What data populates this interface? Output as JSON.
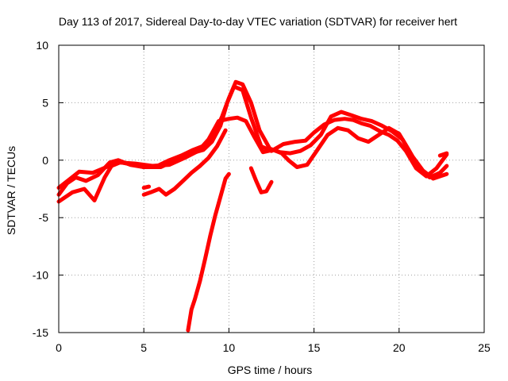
{
  "chart_data": {
    "type": "line",
    "title": "Day 113 of 2017, Sidereal Day-to-day VTEC variation (SDTVAR) for receiver hert",
    "xlabel": "GPS time / hours",
    "ylabel": "SDTVAR / TECUs",
    "xlim": [
      0,
      25
    ],
    "ylim": [
      -15,
      10
    ],
    "xticks": [
      0,
      5,
      10,
      15,
      20,
      25
    ],
    "yticks": [
      -15,
      -10,
      -5,
      0,
      5,
      10
    ],
    "xtick_labels": [
      "0",
      "5",
      "10",
      "15",
      "20",
      "25"
    ],
    "ytick_labels": [
      "-15",
      "-10",
      "-5",
      "0",
      "5",
      "10"
    ],
    "grid": true,
    "legend": "none",
    "series_color": "#ff0000",
    "series": [
      {
        "name": "track-1",
        "x": [
          0,
          0.6,
          1.2,
          2.0,
          2.8,
          3.3,
          4.0,
          5.0,
          6.0,
          7.0,
          7.8,
          8.5,
          9.0,
          9.5,
          9.9,
          10.3,
          10.8,
          11.3,
          11.9,
          12.5,
          13.2,
          13.9,
          14.5,
          15.0,
          15.6,
          16.2,
          16.8,
          17.3,
          17.8,
          18.3,
          18.9,
          19.4,
          19.9,
          20.4,
          21.0,
          21.6,
          22.2,
          22.8
        ],
        "y": [
          -2.4,
          -1.7,
          -1.0,
          -1.1,
          -0.6,
          -0.1,
          -0.3,
          -0.6,
          -0.6,
          0.1,
          0.6,
          0.9,
          1.6,
          3.0,
          5.0,
          6.4,
          6.1,
          3.7,
          1.2,
          0.8,
          1.4,
          1.6,
          1.7,
          2.4,
          3.1,
          3.5,
          3.6,
          3.5,
          3.2,
          3.0,
          2.5,
          2.2,
          1.7,
          0.8,
          -0.7,
          -1.4,
          -0.7,
          0.5
        ]
      },
      {
        "name": "track-2",
        "x": [
          0,
          0.5,
          1.0,
          1.6,
          2.3,
          3.0,
          3.5,
          4.2,
          5.0,
          5.8,
          6.5,
          7.2,
          7.9,
          8.6,
          9.1,
          9.6,
          10.0,
          10.4,
          10.8,
          11.3,
          11.8,
          12.4,
          13.0,
          13.6,
          14.2,
          14.8,
          15.4,
          16.0,
          16.6,
          17.2,
          17.8,
          18.4,
          19.0,
          19.6,
          20.2,
          20.8,
          21.4,
          22.0,
          22.8
        ],
        "y": [
          -3.0,
          -2.0,
          -1.5,
          -1.8,
          -1.3,
          -0.2,
          0.0,
          -0.4,
          -0.6,
          -0.5,
          0.0,
          0.4,
          0.9,
          1.3,
          2.2,
          3.8,
          5.4,
          6.8,
          6.6,
          5.0,
          2.6,
          1.0,
          0.7,
          0.6,
          0.8,
          1.3,
          2.2,
          3.8,
          4.2,
          3.9,
          3.6,
          3.4,
          3.0,
          2.5,
          1.8,
          0.3,
          -0.9,
          -1.6,
          -1.2
        ]
      },
      {
        "name": "track-3",
        "x": [
          0,
          0.8,
          1.5,
          2.1,
          2.7,
          3.1,
          3.6,
          4.5,
          5.5,
          6.5,
          7.4,
          8.2,
          8.8,
          9.4,
          10.0,
          10.5,
          11.0,
          11.5,
          12.0,
          12.6,
          13.1,
          13.5,
          14.0,
          14.6,
          15.2,
          15.8,
          16.4,
          17.0,
          17.6,
          18.2,
          18.8,
          19.4,
          20.0,
          20.6,
          21.2,
          21.8,
          22.4,
          22.8
        ],
        "y": [
          -3.6,
          -2.8,
          -2.5,
          -3.5,
          -1.5,
          -0.5,
          -0.2,
          -0.3,
          -0.5,
          -0.4,
          0.2,
          0.8,
          1.8,
          3.4,
          3.6,
          3.7,
          3.4,
          2.0,
          0.7,
          0.9,
          0.6,
          0.0,
          -0.6,
          -0.4,
          0.9,
          2.2,
          2.8,
          2.6,
          1.9,
          1.6,
          2.2,
          2.8,
          2.3,
          0.8,
          -0.8,
          -1.5,
          -1.1,
          -0.5
        ]
      },
      {
        "name": "track-4",
        "x": [
          5.0,
          5.4,
          5.9,
          6.3,
          6.8,
          7.3,
          7.8,
          8.3,
          8.8,
          9.3,
          9.8
        ],
        "y": [
          -3.0,
          -2.8,
          -2.5,
          -3.0,
          -2.5,
          -1.8,
          -1.1,
          -0.5,
          0.2,
          1.2,
          2.6
        ]
      },
      {
        "name": "track-5",
        "x": [
          7.6,
          7.8,
          8.0,
          8.3,
          8.6,
          8.9,
          9.2,
          9.5,
          9.8,
          10.0
        ],
        "y": [
          -14.8,
          -13.0,
          -12.1,
          -10.5,
          -8.6,
          -6.6,
          -4.8,
          -3.2,
          -1.6,
          -1.2
        ]
      },
      {
        "name": "track-6",
        "x": [
          11.3,
          11.6,
          11.9,
          12.2,
          12.5
        ],
        "y": [
          -0.7,
          -1.8,
          -2.8,
          -2.7,
          -1.9
        ]
      },
      {
        "name": "track-7",
        "x": [
          5.0,
          5.3
        ],
        "y": [
          -2.4,
          -2.3
        ]
      },
      {
        "name": "track-8",
        "x": [
          22.4,
          22.8
        ],
        "y": [
          0.4,
          0.6
        ]
      }
    ]
  }
}
